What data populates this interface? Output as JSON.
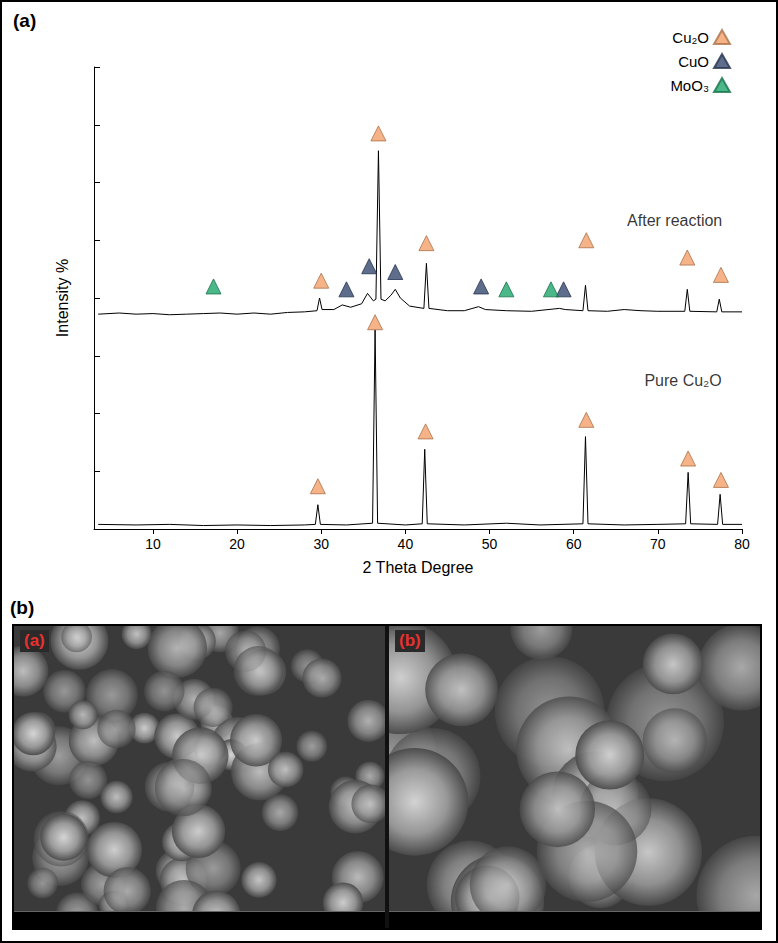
{
  "chart_data": {
    "type": "line",
    "title": "(a)",
    "x_label": "2 Theta Degree",
    "y_label": "Intensity %",
    "xlim": [
      3,
      80
    ],
    "xticks": [
      10,
      20,
      30,
      40,
      50,
      60,
      70,
      80
    ],
    "ylim": [
      0,
      8
    ],
    "yticks": [
      0,
      1,
      2,
      3,
      4,
      5,
      6,
      7,
      8
    ],
    "tick_labels": "x",
    "grid": false,
    "legend": "top-right",
    "series": [
      {
        "name": "After reaction",
        "type": "line",
        "color": "#000000",
        "x": [
          3.5,
          6,
          8,
          10,
          12,
          14,
          16,
          18,
          20,
          22,
          24,
          26,
          28,
          29.5,
          29.8,
          30.1,
          31.5,
          32.5,
          33.5,
          34.8,
          35.5,
          36.2,
          36.5,
          36.8,
          37.1,
          37.6,
          38.3,
          38.8,
          39.4,
          40.5,
          42.2,
          42.5,
          42.8,
          45,
          47,
          48.7,
          49.5,
          52,
          55,
          58.3,
          59,
          61.1,
          61.4,
          61.7,
          64,
          66,
          68,
          70,
          73.2,
          73.5,
          73.8,
          77,
          77.3,
          77.6,
          80
        ],
        "values": [
          3.72,
          3.74,
          3.72,
          3.73,
          3.71,
          3.72,
          3.73,
          3.74,
          3.72,
          3.74,
          3.72,
          3.75,
          3.76,
          3.78,
          4.0,
          3.8,
          3.8,
          3.88,
          3.84,
          3.9,
          4.08,
          3.95,
          3.98,
          6.55,
          3.98,
          3.95,
          4.05,
          4.15,
          4.0,
          3.86,
          3.82,
          4.6,
          3.82,
          3.78,
          3.78,
          3.85,
          3.8,
          3.78,
          3.77,
          3.82,
          3.8,
          3.78,
          4.22,
          3.78,
          3.77,
          3.8,
          3.78,
          3.77,
          3.77,
          4.15,
          3.77,
          3.76,
          3.98,
          3.76,
          3.76
        ]
      },
      {
        "name": "Pure Cu₂O",
        "type": "line",
        "color": "#000000",
        "x": [
          3.5,
          8,
          12,
          16,
          20,
          24,
          28,
          29.3,
          29.6,
          29.9,
          33,
          36.1,
          36.4,
          36.7,
          40,
          42.0,
          42.3,
          42.6,
          47,
          52,
          56,
          61.1,
          61.4,
          61.7,
          66,
          70,
          73.3,
          73.6,
          73.9,
          77.1,
          77.4,
          77.7,
          80
        ],
        "values": [
          0.08,
          0.07,
          0.08,
          0.06,
          0.07,
          0.06,
          0.07,
          0.08,
          0.42,
          0.08,
          0.07,
          0.1,
          3.45,
          0.1,
          0.07,
          0.09,
          1.38,
          0.09,
          0.07,
          0.1,
          0.07,
          0.09,
          1.6,
          0.09,
          0.07,
          0.08,
          0.09,
          0.98,
          0.09,
          0.08,
          0.6,
          0.08,
          0.08
        ]
      },
      {
        "name": "Cu₂O",
        "type": "scatter",
        "marker": "triangle",
        "color": "#f4a06a",
        "x": [
          30,
          36.8,
          42.5,
          61.5,
          73.5,
          77.5,
          29.6,
          36.4,
          42.4,
          61.5,
          73.6,
          77.5
        ],
        "values": [
          4.3,
          6.85,
          4.95,
          5.0,
          4.7,
          4.4,
          0.74,
          3.58,
          1.69,
          1.89,
          1.22,
          0.85
        ]
      },
      {
        "name": "CuO",
        "type": "scatter",
        "marker": "triangle",
        "color": "#34496e",
        "x": [
          33,
          35.7,
          38.8,
          49,
          58.8
        ],
        "values": [
          4.15,
          4.55,
          4.45,
          4.2,
          4.15
        ]
      },
      {
        "name": "MoO₃",
        "type": "scatter",
        "marker": "triangle",
        "color": "#1fa56b",
        "x": [
          17.2,
          52,
          57.3
        ],
        "values": [
          4.2,
          4.15,
          4.15
        ]
      }
    ],
    "annotations": [
      {
        "text": "After reaction",
        "x": 72,
        "y": 5.35
      },
      {
        "text": "Pure Cu₂O",
        "x": 73,
        "y": 2.57
      }
    ]
  },
  "figure": {
    "panel_label": "(b)",
    "images": [
      {
        "label": "(a)"
      },
      {
        "label": "(b)"
      }
    ]
  }
}
